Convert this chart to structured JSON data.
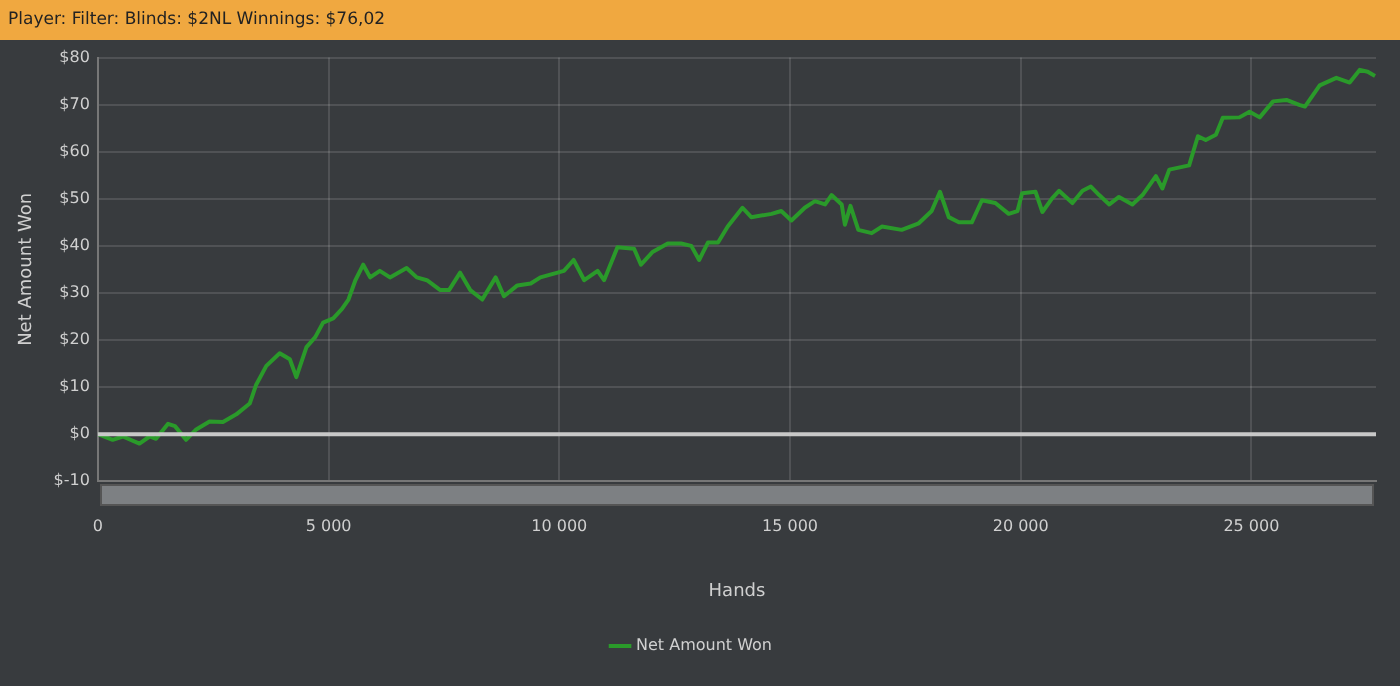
{
  "chart_data": {
    "type": "line",
    "title": "Player: Filter: Blinds: $2NL Winnings: $76,02",
    "xlabel": "Hands",
    "ylabel": "Net Amount Won",
    "x": [
      0,
      320,
      540,
      900,
      1120,
      1260,
      1520,
      1670,
      1910,
      2130,
      2420,
      2710,
      3000,
      3290,
      3430,
      3650,
      3940,
      4160,
      4300,
      4520,
      4710,
      4880,
      5100,
      5290,
      5430,
      5580,
      5750,
      5900,
      6110,
      6330,
      6690,
      6910,
      7130,
      7420,
      7610,
      7850,
      8070,
      8330,
      8620,
      8800,
      9090,
      9380,
      9590,
      10100,
      10310,
      10540,
      10830,
      10970,
      11260,
      11620,
      11770,
      12020,
      12350,
      12640,
      12860,
      13030,
      13220,
      13440,
      13650,
      13970,
      14160,
      14600,
      14810,
      15030,
      15320,
      15540,
      15760,
      15900,
      16120,
      16190,
      16310,
      16480,
      16770,
      16990,
      17420,
      17790,
      18070,
      18250,
      18440,
      18660,
      18940,
      19160,
      19450,
      19740,
      19930,
      20030,
      20320,
      20470,
      20680,
      20830,
      21120,
      21340,
      21520,
      21700,
      21920,
      22130,
      22420,
      22640,
      22930,
      23070,
      23220,
      23650,
      23840,
      24010,
      24230,
      24380,
      24740,
      24960,
      25180,
      25470,
      25760,
      26050,
      26160,
      26480,
      26840,
      27130,
      27350,
      27520,
      27680
    ],
    "series": [
      {
        "name": "Net Amount Won",
        "color": "#2a9a2a",
        "values": [
          0,
          -1.2,
          -0.5,
          -2,
          -0.5,
          -1,
          2.2,
          1.7,
          -1.2,
          1,
          2.7,
          2.6,
          4.2,
          6.5,
          10.5,
          14.5,
          17.2,
          15.9,
          12.1,
          18.5,
          20.6,
          23.7,
          24.6,
          26.6,
          28.6,
          32.7,
          36,
          33.3,
          34.7,
          33.3,
          35.3,
          33.3,
          32.7,
          30.6,
          30.6,
          34.3,
          30.6,
          28.6,
          33.3,
          29.3,
          31.6,
          32,
          33.3,
          34.7,
          37,
          32.7,
          34.7,
          32.7,
          39.7,
          39.4,
          36,
          38.7,
          40.5,
          40.5,
          40,
          37,
          40.7,
          40.7,
          44.1,
          48.1,
          46.1,
          46.8,
          47.4,
          45.4,
          48.1,
          49.5,
          48.8,
          50.8,
          48.8,
          44.5,
          48.5,
          43.4,
          42.7,
          44.1,
          43.4,
          44.8,
          47.4,
          51.5,
          46.1,
          45,
          45,
          49.7,
          49.1,
          46.8,
          47.4,
          51.2,
          51.5,
          47.2,
          50.1,
          51.7,
          49.1,
          51.7,
          52.6,
          50.8,
          48.8,
          50.4,
          48.8,
          50.8,
          54.8,
          52.2,
          56.2,
          57.1,
          63.3,
          62.5,
          63.6,
          67.2,
          67.3,
          68.5,
          67.3,
          70.7,
          71,
          69.9,
          69.6,
          74.1,
          75.7,
          74.7,
          77.4,
          77,
          76.1
        ]
      }
    ],
    "xlim": [
      0,
      27700
    ],
    "xticks": [
      0,
      {
        "value": 5000,
        "label": "5 000"
      },
      {
        "value": 10000,
        "label": "10 000"
      },
      {
        "value": 15000,
        "label": "15 000"
      },
      {
        "value": 20000,
        "label": "20 000"
      },
      {
        "value": 25000,
        "label": "25 000"
      }
    ],
    "ylim": [
      -10,
      80
    ],
    "yticks": [
      {
        "value": -10,
        "label": "$-10"
      },
      {
        "value": 0,
        "label": "$0"
      },
      {
        "value": 10,
        "label": "$10"
      },
      {
        "value": 20,
        "label": "$20"
      },
      {
        "value": 30,
        "label": "$30"
      },
      {
        "value": 40,
        "label": "$40"
      },
      {
        "value": 50,
        "label": "$50"
      },
      {
        "value": 60,
        "label": "$60"
      },
      {
        "value": 70,
        "label": "$70"
      },
      {
        "value": 80,
        "label": "$80"
      }
    ],
    "ref_lines": [
      {
        "axis": "y",
        "value": 0,
        "color": "#c8c8c8"
      }
    ],
    "grid": true,
    "legend": "bottom",
    "marker": "none",
    "line_style": "solid"
  }
}
